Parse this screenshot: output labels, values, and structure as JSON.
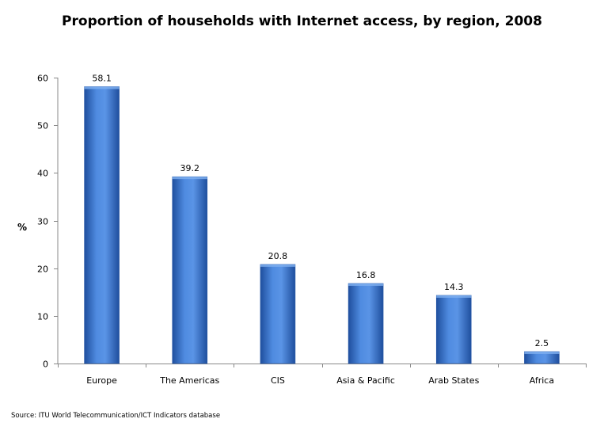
{
  "chart_data": {
    "type": "bar",
    "title": "Proportion of households  with Internet access, by region, 2008",
    "xlabel": "",
    "ylabel": "%",
    "categories": [
      "Europe",
      "The Americas",
      "CIS",
      "Asia & Pacific",
      "Arab States",
      "Africa"
    ],
    "values": [
      58.1,
      39.2,
      20.8,
      16.8,
      14.3,
      2.5
    ],
    "value_labels": [
      "58.1",
      "39.2",
      "20.8",
      "16.8",
      "14.3",
      "2.5"
    ],
    "ylim": [
      0,
      60
    ],
    "yticks": [
      0,
      10,
      20,
      30,
      40,
      50,
      60
    ],
    "grid": false,
    "legend": "none",
    "bar_color": "#3f78cf",
    "bar_edge_color": "#2a5aa8",
    "source": "Source: ITU World Telecommunication/ICT Indicators database"
  }
}
